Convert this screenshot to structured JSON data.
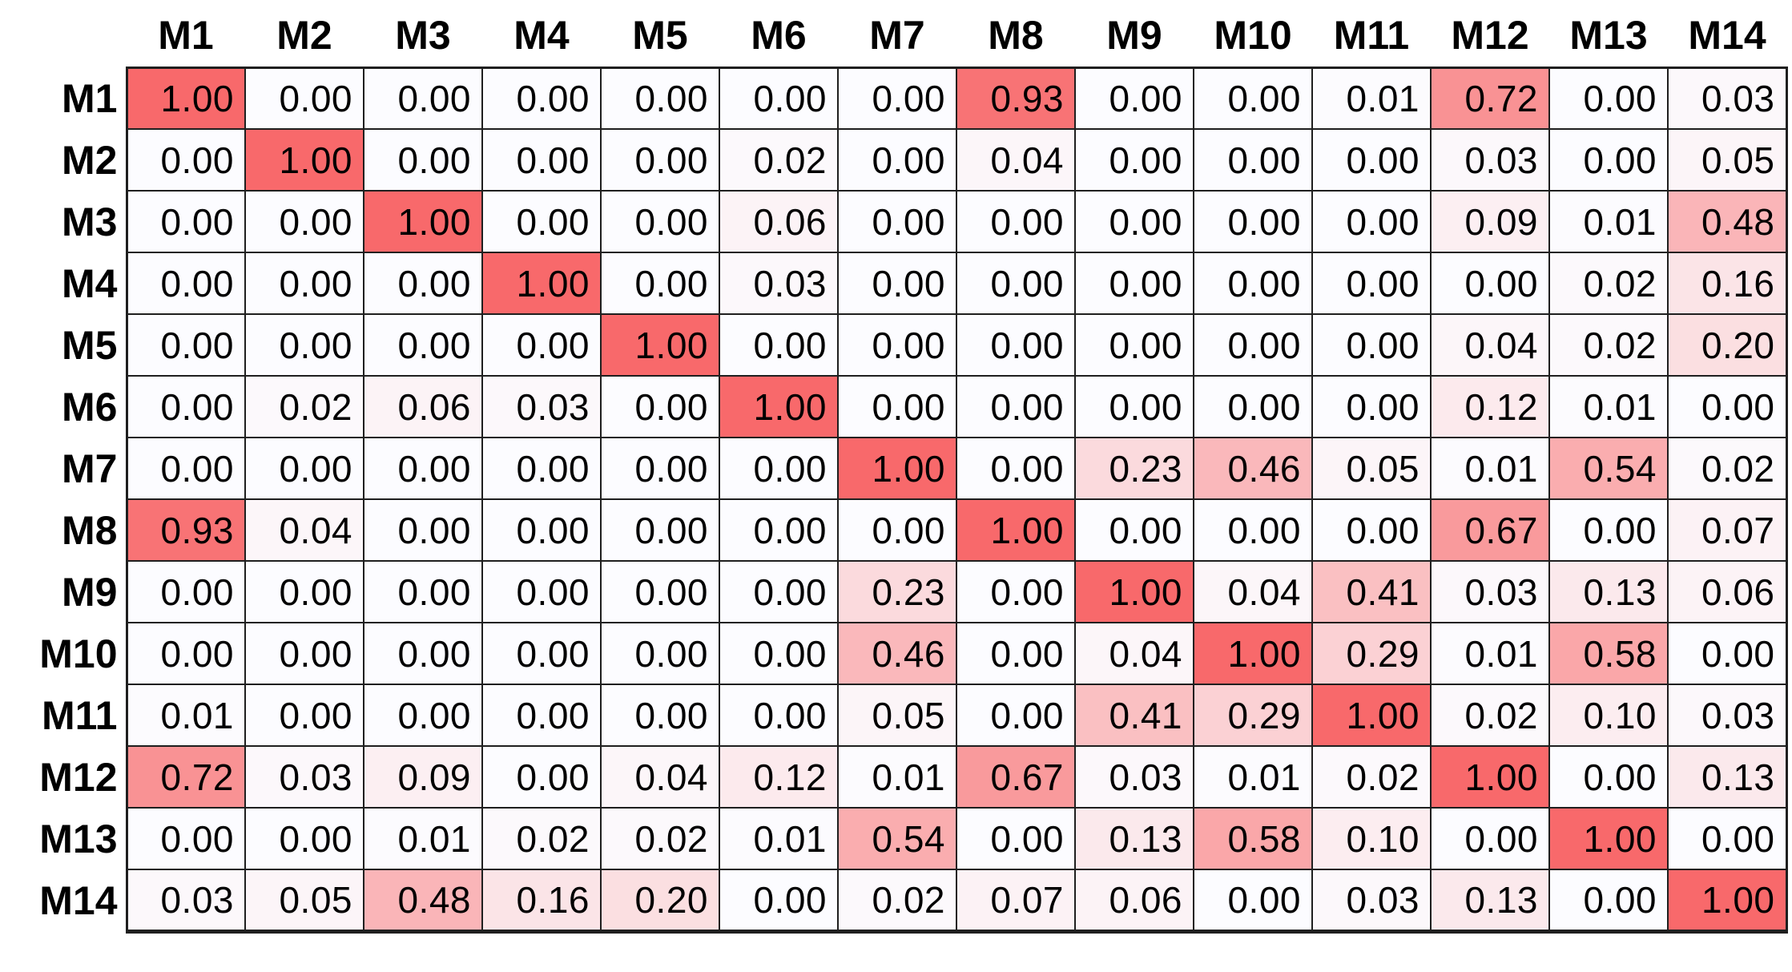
{
  "chart_data": {
    "type": "heatmap",
    "title": "",
    "row_labels": [
      "M1",
      "M2",
      "M3",
      "M4",
      "M5",
      "M6",
      "M7",
      "M8",
      "M9",
      "M10",
      "M11",
      "M12",
      "M13",
      "M14"
    ],
    "col_labels": [
      "M1",
      "M2",
      "M3",
      "M4",
      "M5",
      "M6",
      "M7",
      "M8",
      "M9",
      "M10",
      "M11",
      "M12",
      "M13",
      "M14"
    ],
    "matrix": [
      [
        "1.00",
        "0.00",
        "0.00",
        "0.00",
        "0.00",
        "0.00",
        "0.00",
        "0.93",
        "0.00",
        "0.00",
        "0.01",
        "0.72",
        "0.00",
        "0.03"
      ],
      [
        "0.00",
        "1.00",
        "0.00",
        "0.00",
        "0.00",
        "0.02",
        "0.00",
        "0.04",
        "0.00",
        "0.00",
        "0.00",
        "0.03",
        "0.00",
        "0.05"
      ],
      [
        "0.00",
        "0.00",
        "1.00",
        "0.00",
        "0.00",
        "0.06",
        "0.00",
        "0.00",
        "0.00",
        "0.00",
        "0.00",
        "0.09",
        "0.01",
        "0.48"
      ],
      [
        "0.00",
        "0.00",
        "0.00",
        "1.00",
        "0.00",
        "0.03",
        "0.00",
        "0.00",
        "0.00",
        "0.00",
        "0.00",
        "0.00",
        "0.02",
        "0.16"
      ],
      [
        "0.00",
        "0.00",
        "0.00",
        "0.00",
        "1.00",
        "0.00",
        "0.00",
        "0.00",
        "0.00",
        "0.00",
        "0.00",
        "0.04",
        "0.02",
        "0.20"
      ],
      [
        "0.00",
        "0.02",
        "0.06",
        "0.03",
        "0.00",
        "1.00",
        "0.00",
        "0.00",
        "0.00",
        "0.00",
        "0.00",
        "0.12",
        "0.01",
        "0.00"
      ],
      [
        "0.00",
        "0.00",
        "0.00",
        "0.00",
        "0.00",
        "0.00",
        "1.00",
        "0.00",
        "0.23",
        "0.46",
        "0.05",
        "0.01",
        "0.54",
        "0.02"
      ],
      [
        "0.93",
        "0.04",
        "0.00",
        "0.00",
        "0.00",
        "0.00",
        "0.00",
        "1.00",
        "0.00",
        "0.00",
        "0.00",
        "0.67",
        "0.00",
        "0.07"
      ],
      [
        "0.00",
        "0.00",
        "0.00",
        "0.00",
        "0.00",
        "0.00",
        "0.23",
        "0.00",
        "1.00",
        "0.04",
        "0.41",
        "0.03",
        "0.13",
        "0.06"
      ],
      [
        "0.00",
        "0.00",
        "0.00",
        "0.00",
        "0.00",
        "0.00",
        "0.46",
        "0.00",
        "0.04",
        "1.00",
        "0.29",
        "0.01",
        "0.58",
        "0.00"
      ],
      [
        "0.01",
        "0.00",
        "0.00",
        "0.00",
        "0.00",
        "0.00",
        "0.05",
        "0.00",
        "0.41",
        "0.29",
        "1.00",
        "0.02",
        "0.10",
        "0.03"
      ],
      [
        "0.72",
        "0.03",
        "0.09",
        "0.00",
        "0.04",
        "0.12",
        "0.01",
        "0.67",
        "0.03",
        "0.01",
        "0.02",
        "1.00",
        "0.00",
        "0.13"
      ],
      [
        "0.00",
        "0.00",
        "0.01",
        "0.02",
        "0.02",
        "0.01",
        "0.54",
        "0.00",
        "0.13",
        "0.58",
        "0.10",
        "0.00",
        "1.00",
        "0.00"
      ],
      [
        "0.03",
        "0.05",
        "0.48",
        "0.16",
        "0.20",
        "0.00",
        "0.02",
        "0.07",
        "0.06",
        "0.00",
        "0.03",
        "0.13",
        "0.00",
        "1.00"
      ]
    ],
    "value_range": [
      0,
      1
    ],
    "color_scale": {
      "min_value": 0,
      "max_value": 1,
      "min_color": "#FCFCFF",
      "max_color": "#F8696B"
    },
    "grid_border_color": "#1F1F1F",
    "legend": "none",
    "layout_hints": {
      "row_labels_position": "left",
      "col_labels_position": "top",
      "cell_text": "shown",
      "grid": "on"
    }
  }
}
